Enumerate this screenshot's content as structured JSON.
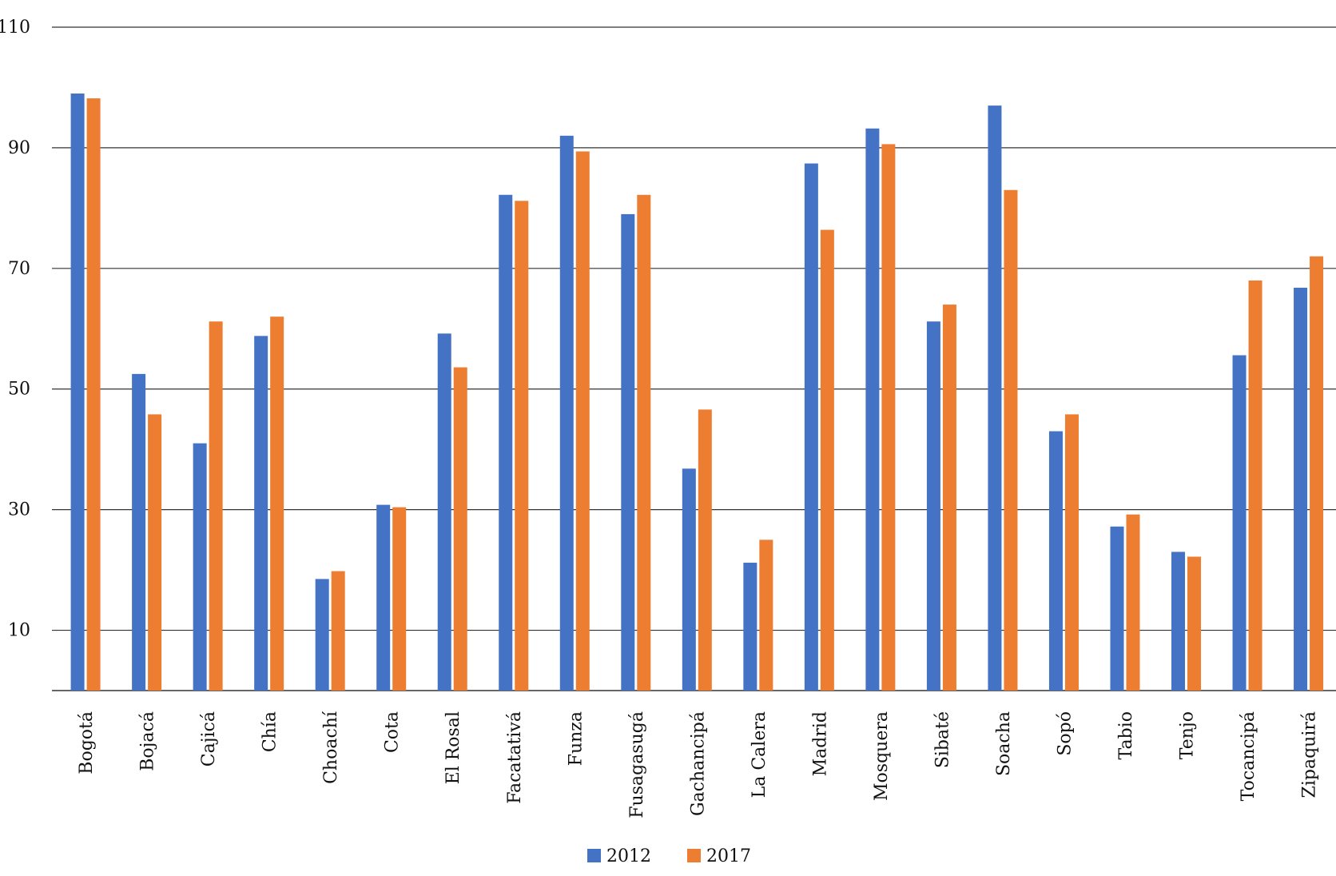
{
  "chart_data": {
    "type": "bar",
    "title": "",
    "xlabel": "",
    "ylabel": "",
    "ylim": [
      0,
      110
    ],
    "y_ticks": [
      10,
      30,
      50,
      70,
      90,
      110
    ],
    "y_tick_labels": [
      "10",
      "30",
      "50",
      "70",
      "90",
      "110"
    ],
    "grid": "horizontal",
    "legend": "bottom-center",
    "categories": [
      "Bogotá",
      "Bojacá",
      "Cajicá",
      "Chía",
      "Choachí",
      "Cota",
      "El Rosal",
      "Facatativá",
      "Funza",
      "Fusagasugá",
      "Gachancipá",
      "La Calera",
      "Madrid",
      "Mosquera",
      "Sibaté",
      "Soacha",
      "Sopó",
      "Tabio",
      "Tenjo",
      "Tocancipá",
      "Zipaquirá"
    ],
    "series": [
      {
        "name": "2012",
        "color": "#4472C4",
        "values": [
          99,
          52.5,
          41,
          58.8,
          18.5,
          30.8,
          59.2,
          82.2,
          92,
          79,
          36.8,
          21.2,
          87.4,
          93.2,
          61.2,
          97,
          43,
          27.2,
          23,
          55.6,
          66.8
        ]
      },
      {
        "name": "2017",
        "color": "#ED7D31",
        "values": [
          98.2,
          45.8,
          61.2,
          62,
          19.8,
          30.4,
          53.6,
          81.2,
          89.4,
          82.2,
          46.6,
          25,
          76.4,
          90.6,
          64,
          83,
          45.8,
          29.2,
          22.2,
          68,
          72
        ]
      }
    ]
  }
}
